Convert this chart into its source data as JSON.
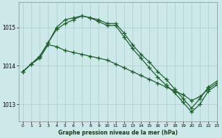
{
  "title": "Graphe pression niveau de la mer (hPa)",
  "bg_color": "#cce8e8",
  "grid_color": "#aacccc",
  "line_color": "#1a5c2a",
  "xlim": [
    -0.5,
    23
  ],
  "ylim": [
    1012.55,
    1015.65
  ],
  "yticks": [
    1013,
    1014,
    1015
  ],
  "xticks": [
    0,
    1,
    2,
    3,
    4,
    5,
    6,
    7,
    8,
    9,
    10,
    11,
    12,
    13,
    14,
    15,
    16,
    17,
    18,
    19,
    20,
    21,
    22,
    23
  ],
  "line1": [
    1013.85,
    1014.05,
    1014.25,
    1014.6,
    1015.0,
    1015.2,
    1015.25,
    1015.3,
    1015.25,
    1015.2,
    1015.1,
    1015.1,
    1014.85,
    1014.55,
    1014.3,
    1014.1,
    1013.85,
    1013.65,
    1013.4,
    1013.15,
    1012.9,
    1013.15,
    1013.45,
    1013.6
  ],
  "line2": [
    1013.85,
    1014.05,
    1014.25,
    1014.6,
    1014.95,
    1015.1,
    1015.2,
    1015.3,
    1015.25,
    1015.15,
    1015.05,
    1015.05,
    1014.75,
    1014.45,
    1014.2,
    1013.95,
    1013.7,
    1013.5,
    1013.3,
    1013.05,
    1012.8,
    1013.0,
    1013.35,
    1013.5
  ],
  "line3": [
    1013.85,
    1014.05,
    1014.2,
    1014.55,
    1014.5,
    1014.4,
    1014.35,
    1014.3,
    1014.25,
    1014.2,
    1014.15,
    1014.05,
    1013.95,
    1013.85,
    1013.75,
    1013.65,
    1013.55,
    1013.45,
    1013.35,
    1013.25,
    1013.1,
    1013.2,
    1013.4,
    1013.55
  ]
}
